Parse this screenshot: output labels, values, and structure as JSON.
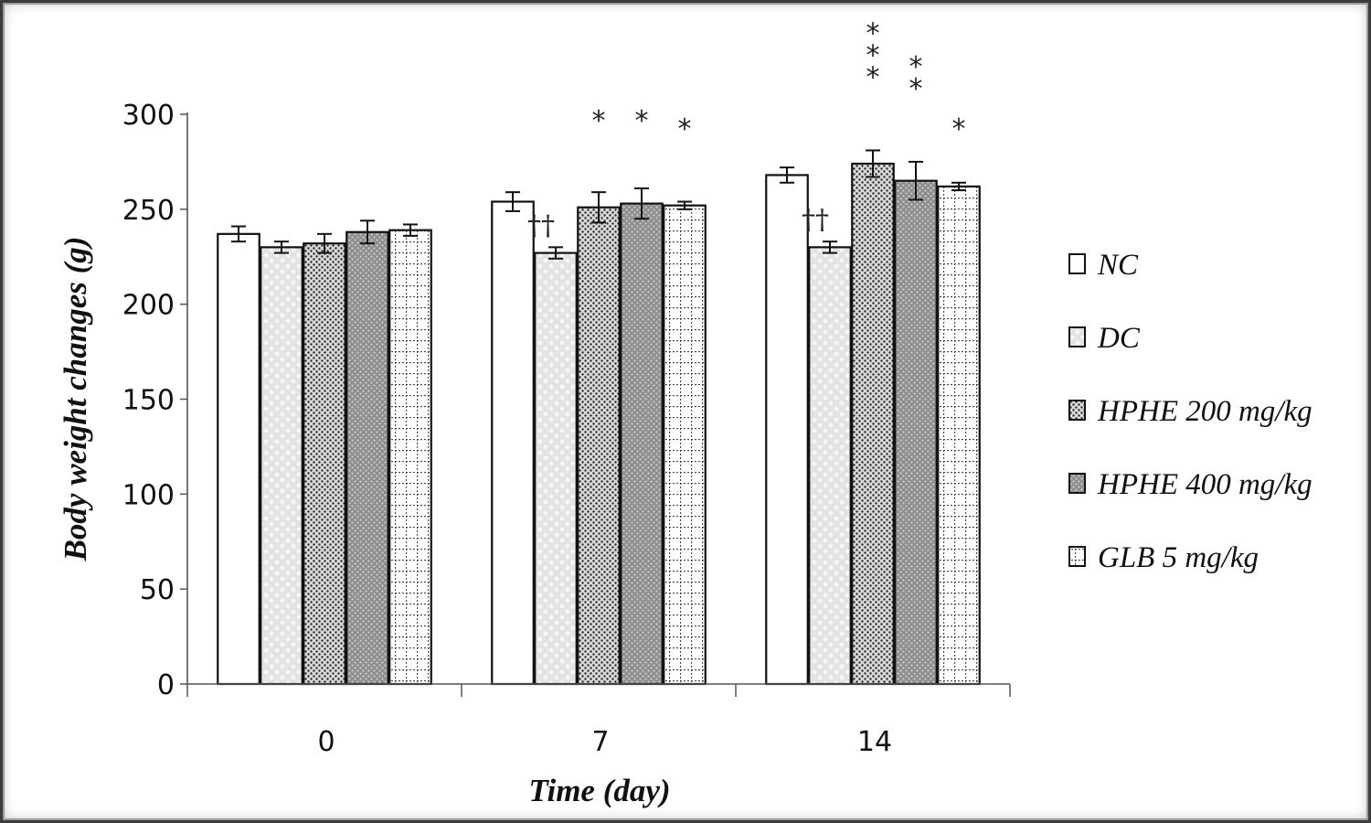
{
  "chart_data": {
    "type": "bar",
    "title": "",
    "xlabel": "Time (day)",
    "ylabel": "Body weight changes (g)",
    "ylim": [
      0,
      300
    ],
    "yticks": [
      0,
      50,
      100,
      150,
      200,
      250,
      300
    ],
    "categories": [
      "0",
      "7",
      "14"
    ],
    "legend_position": "right",
    "series": [
      {
        "name": "NC",
        "pattern": "plain",
        "values": [
          237,
          254,
          268
        ],
        "errors": [
          4,
          5,
          4
        ]
      },
      {
        "name": "DC",
        "pattern": "light-dots",
        "values": [
          230,
          227,
          230
        ],
        "errors": [
          3,
          3,
          3
        ]
      },
      {
        "name": "HPHE 200 mg/kg",
        "pattern": "fine-dots",
        "values": [
          232,
          251,
          274
        ],
        "errors": [
          5,
          8,
          7
        ]
      },
      {
        "name": "HPHE 400 mg/kg",
        "pattern": "dark-dots",
        "values": [
          238,
          253,
          265
        ],
        "errors": [
          6,
          8,
          10
        ]
      },
      {
        "name": "GLB 5 mg/kg",
        "pattern": "grid",
        "values": [
          239,
          252,
          262
        ],
        "errors": [
          3,
          2,
          2
        ]
      }
    ],
    "annotations": [
      {
        "category": "7",
        "series": "DC",
        "text": "††"
      },
      {
        "category": "7",
        "series": "HPHE 200 mg/kg",
        "text": "*"
      },
      {
        "category": "7",
        "series": "HPHE 400 mg/kg",
        "text": "*"
      },
      {
        "category": "7",
        "series": "GLB 5 mg/kg",
        "text": "*"
      },
      {
        "category": "14",
        "series": "DC",
        "text": "††"
      },
      {
        "category": "14",
        "series": "HPHE 200 mg/kg",
        "text": "***"
      },
      {
        "category": "14",
        "series": "HPHE 400 mg/kg",
        "text": "**"
      },
      {
        "category": "14",
        "series": "GLB 5 mg/kg",
        "text": "*"
      }
    ]
  }
}
